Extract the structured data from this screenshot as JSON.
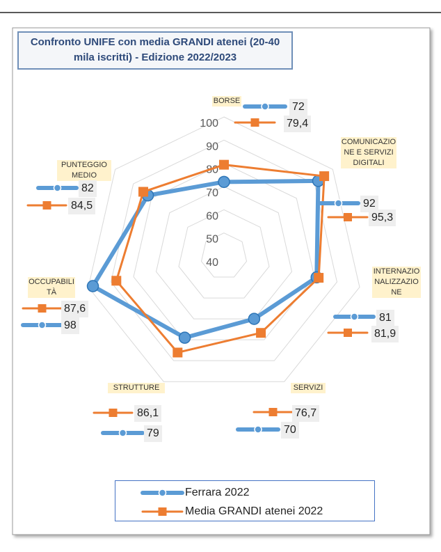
{
  "chart_data": {
    "type": "radar",
    "title": "Confronto UNIFE con media GRANDI atenei (20-40 mila iscritti) - Edizione 2022/2023",
    "categories": [
      "BORSE",
      "COMUNICAZIONE E SERVIZI DIGITALI",
      "INTERNAZIONALIZZAZIONE",
      "SERVIZI",
      "STRUTTURE",
      "OCCUPABILITÀ",
      "PUNTEGGIO MEDIO"
    ],
    "series": [
      {
        "name": "Ferrara 2022",
        "color": "#5b9bd5",
        "values": [
          72,
          92,
          81,
          70,
          79,
          98,
          82
        ]
      },
      {
        "name": "Media GRANDI atenei 2022",
        "color": "#ed7d31",
        "values": [
          79.4,
          95.3,
          81.9,
          76.7,
          86.1,
          87.6,
          84.5
        ],
        "value_labels": [
          "79,4",
          "95,3",
          "81,9",
          "76,7",
          "86,1",
          "87,6",
          "84,5"
        ]
      }
    ],
    "ylim": [
      40,
      100
    ],
    "yticks": [
      40,
      50,
      60,
      70,
      80,
      90,
      100
    ],
    "grid": true,
    "legend": "bottom"
  }
}
